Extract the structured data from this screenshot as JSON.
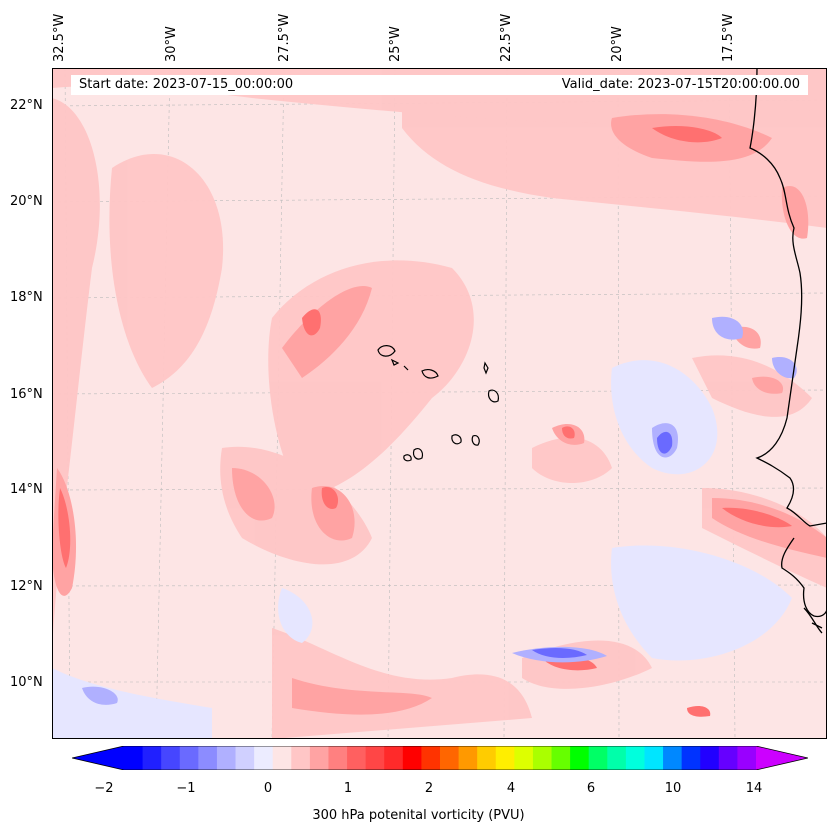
{
  "map": {
    "start_date": "Start date: 2023-07-15_00:00:00",
    "valid_date": "Valid_date: 2023-07-15T20:00:00.00",
    "lon_labels": [
      "32.5°W",
      "30°W",
      "27.5°W",
      "25°W",
      "22.5°W",
      "20°W",
      "17.5°W"
    ],
    "lat_labels": [
      "22°N",
      "20°N",
      "18°N",
      "16°N",
      "14°N",
      "12°N",
      "10°N"
    ],
    "field": "300 hPa potenital vorticity",
    "colors": {
      "background": "#fde5e5",
      "light_red": "#ffc6c6",
      "medium_red": "#ffa3a3",
      "strong_red": "#ff7070",
      "peak_red": "#ff3b3b",
      "light_blue": "#e6e6ff",
      "medium_blue": "#b0b0ff",
      "strong_blue": "#6a6aff",
      "coastline": "#000000"
    }
  },
  "colorbar": {
    "label": "300 hPa potenital vorticity (PVU)",
    "ticks": [
      "−2",
      "−1",
      "0",
      "1",
      "2",
      "4",
      "6",
      "10",
      "14"
    ],
    "colors": [
      "#0000ff",
      "#2020ff",
      "#4646ff",
      "#6a6aff",
      "#8c8cff",
      "#b0b0ff",
      "#d0d0ff",
      "#ececff",
      "#fde5e5",
      "#ffc6c6",
      "#ffa3a3",
      "#ff8080",
      "#ff6060",
      "#ff4646",
      "#ff2a2a",
      "#ff0000",
      "#ff3300",
      "#ff6600",
      "#ff9900",
      "#ffcc00",
      "#ffee00",
      "#ddff00",
      "#aaff00",
      "#66ff00",
      "#00ff00",
      "#00ff66",
      "#00ffaa",
      "#00ffdd",
      "#00e5ff",
      "#0088ff",
      "#0033ff",
      "#2200ff",
      "#6600ff",
      "#9900ff"
    ],
    "min_arrow_color": "#0000ff",
    "max_arrow_color": "#cc00ff"
  }
}
